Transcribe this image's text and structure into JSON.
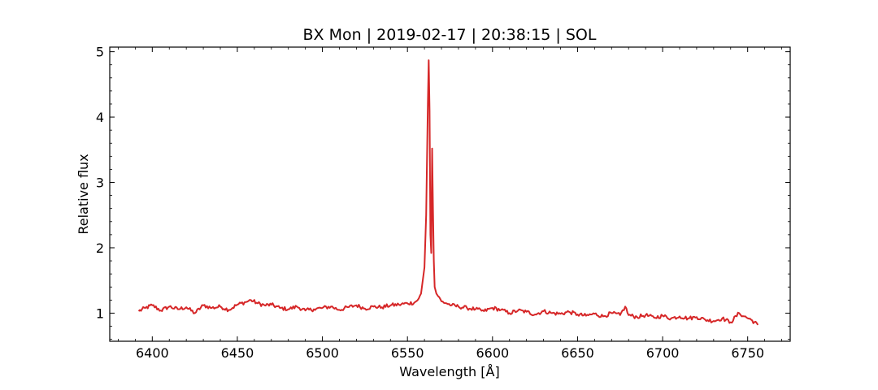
{
  "chart_data": {
    "type": "line",
    "title": "BX Mon | 2019-02-17 | 20:38:15 | SOL",
    "xlabel": "Wavelength [Å]",
    "ylabel": "Relative flux",
    "xlim": [
      6375,
      6775
    ],
    "ylim": [
      0.57,
      5.07
    ],
    "xticks": [
      6400,
      6450,
      6500,
      6550,
      6600,
      6650,
      6700,
      6750
    ],
    "yticks": [
      1,
      2,
      3,
      4,
      5
    ],
    "grid": false,
    "line_color": "#d62728",
    "series": [
      {
        "x": [
          6392,
          6396,
          6400,
          6405,
          6410,
          6415,
          6420,
          6425,
          6430,
          6435,
          6440,
          6445,
          6450,
          6455,
          6458,
          6462,
          6466,
          6470,
          6475,
          6480,
          6485,
          6490,
          6495,
          6500,
          6505,
          6510,
          6515,
          6520,
          6525,
          6530,
          6535,
          6540,
          6545,
          6550,
          6554,
          6556,
          6558,
          6560,
          6561,
          6562,
          6562.5,
          6563,
          6563.5,
          6564,
          6564.5,
          6565,
          6565.5,
          6566,
          6567,
          6568,
          6570,
          6573,
          6576,
          6580,
          6585,
          6590,
          6595,
          6600,
          6605,
          6610,
          6615,
          6620,
          6625,
          6630,
          6635,
          6640,
          6645,
          6650,
          6655,
          6660,
          6665,
          6670,
          6675,
          6678,
          6680,
          6685,
          6690,
          6695,
          6700,
          6705,
          6710,
          6715,
          6720,
          6725,
          6730,
          6735,
          6740,
          6745,
          6748,
          6752,
          6756
        ],
        "y": [
          1.03,
          1.08,
          1.12,
          1.04,
          1.1,
          1.06,
          1.09,
          1.0,
          1.12,
          1.08,
          1.1,
          1.05,
          1.13,
          1.17,
          1.2,
          1.15,
          1.12,
          1.13,
          1.08,
          1.06,
          1.1,
          1.04,
          1.06,
          1.08,
          1.1,
          1.05,
          1.09,
          1.12,
          1.07,
          1.1,
          1.09,
          1.12,
          1.13,
          1.15,
          1.16,
          1.2,
          1.3,
          1.7,
          2.5,
          4.2,
          4.87,
          4.1,
          2.2,
          1.92,
          3.52,
          2.6,
          1.8,
          1.4,
          1.3,
          1.26,
          1.18,
          1.15,
          1.12,
          1.1,
          1.08,
          1.06,
          1.03,
          1.08,
          1.05,
          1.0,
          1.04,
          1.02,
          0.98,
          1.03,
          1.0,
          0.99,
          1.02,
          0.98,
          0.96,
          0.99,
          0.95,
          1.0,
          0.97,
          1.1,
          0.97,
          0.94,
          0.97,
          0.93,
          0.96,
          0.92,
          0.95,
          0.92,
          0.94,
          0.9,
          0.88,
          0.92,
          0.86,
          1.0,
          0.95,
          0.9,
          0.82
        ]
      }
    ]
  }
}
